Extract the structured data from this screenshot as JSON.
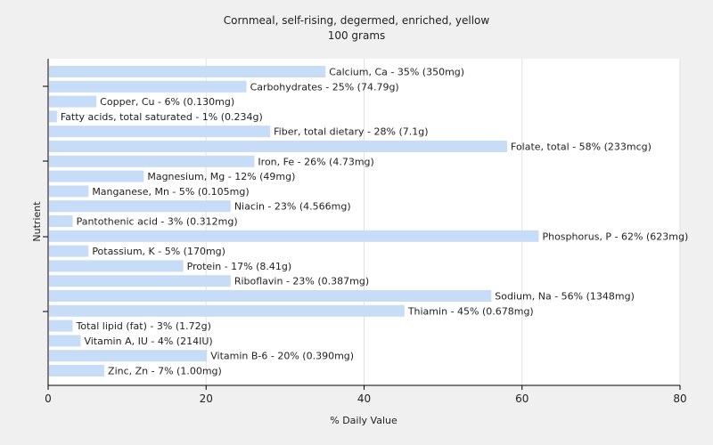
{
  "chart_data": {
    "type": "bar",
    "orientation": "horizontal",
    "title": "Cornmeal, self-rising, degermed, enriched, yellow",
    "subtitle": "100 grams",
    "xlabel": "% Daily Value",
    "ylabel": "Nutrient",
    "xlim": [
      0,
      80
    ],
    "xticks": [
      0,
      20,
      40,
      60,
      80
    ],
    "grid": true,
    "bar_color": "#c6dcf7",
    "categories": [
      "Calcium, Ca",
      "Carbohydrates",
      "Copper, Cu",
      "Fatty acids, total saturated",
      "Fiber, total dietary",
      "Folate, total",
      "Iron, Fe",
      "Magnesium, Mg",
      "Manganese, Mn",
      "Niacin",
      "Pantothenic acid",
      "Phosphorus, P",
      "Potassium, K",
      "Protein",
      "Riboflavin",
      "Sodium, Na",
      "Thiamin",
      "Total lipid (fat)",
      "Vitamin A, IU",
      "Vitamin B-6",
      "Zinc, Zn"
    ],
    "values": [
      35,
      25,
      6,
      1,
      28,
      58,
      26,
      12,
      5,
      23,
      3,
      62,
      5,
      17,
      23,
      56,
      45,
      3,
      4,
      20,
      7
    ],
    "labels": [
      "Calcium, Ca - 35% (350mg)",
      "Carbohydrates - 25% (74.79g)",
      "Copper, Cu - 6% (0.130mg)",
      "Fatty acids, total saturated - 1% (0.234g)",
      "Fiber, total dietary - 28% (7.1g)",
      "Folate, total - 58% (233mcg)",
      "Iron, Fe - 26% (4.73mg)",
      "Magnesium, Mg - 12% (49mg)",
      "Manganese, Mn - 5% (0.105mg)",
      "Niacin - 23% (4.566mg)",
      "Pantothenic acid - 3% (0.312mg)",
      "Phosphorus, P - 62% (623mg)",
      "Potassium, K - 5% (170mg)",
      "Protein - 17% (8.41g)",
      "Riboflavin - 23% (0.387mg)",
      "Sodium, Na - 56% (1348mg)",
      "Thiamin - 45% (0.678mg)",
      "Total lipid (fat) - 3% (1.72g)",
      "Vitamin A, IU - 4% (214IU)",
      "Vitamin B-6 - 20% (0.390mg)",
      "Zinc, Zn - 7% (1.00mg)"
    ]
  }
}
